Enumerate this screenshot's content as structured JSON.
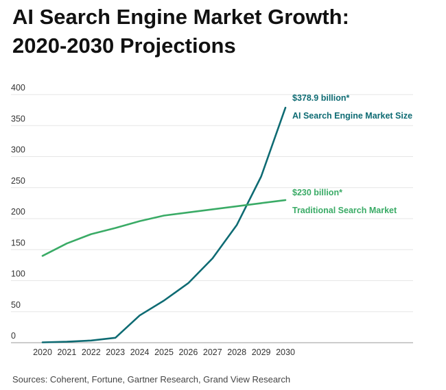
{
  "title": {
    "line1": "AI Search Engine Market Growth:",
    "line2": "2020-2030 Projections"
  },
  "source": "Sources: Coherent, Fortune, Gartner Research, Grand View Research",
  "colors": {
    "ai_series": "#0e6b73",
    "traditional_series": "#3aab66",
    "grid": "#e6e6e6",
    "axis": "#999999"
  },
  "chart_data": {
    "type": "line",
    "title": "AI Search Engine Market Growth: 2020-2030 Projections",
    "xlabel": "",
    "ylabel": "",
    "x": [
      "2020",
      "2021",
      "2022",
      "2023",
      "2024",
      "2025",
      "2026",
      "2027",
      "2028",
      "2029",
      "2030"
    ],
    "ylim": [
      0,
      400
    ],
    "yticks": [
      0,
      50,
      100,
      150,
      200,
      250,
      300,
      350,
      400
    ],
    "grid": true,
    "series": [
      {
        "name": "AI Search Engine Market Size",
        "values": [
          0.5,
          1.5,
          3.5,
          8,
          44,
          68,
          96,
          136,
          190,
          268,
          378.9
        ],
        "end_label": "$378.9 billion*",
        "series_label": "AI Search Engine Market Size"
      },
      {
        "name": "Traditional Search Market",
        "values": [
          140,
          160,
          175,
          185,
          196,
          205,
          210,
          215,
          220,
          225,
          230
        ],
        "end_label": "$230 billion*",
        "series_label": "Traditional Search Market"
      }
    ]
  }
}
